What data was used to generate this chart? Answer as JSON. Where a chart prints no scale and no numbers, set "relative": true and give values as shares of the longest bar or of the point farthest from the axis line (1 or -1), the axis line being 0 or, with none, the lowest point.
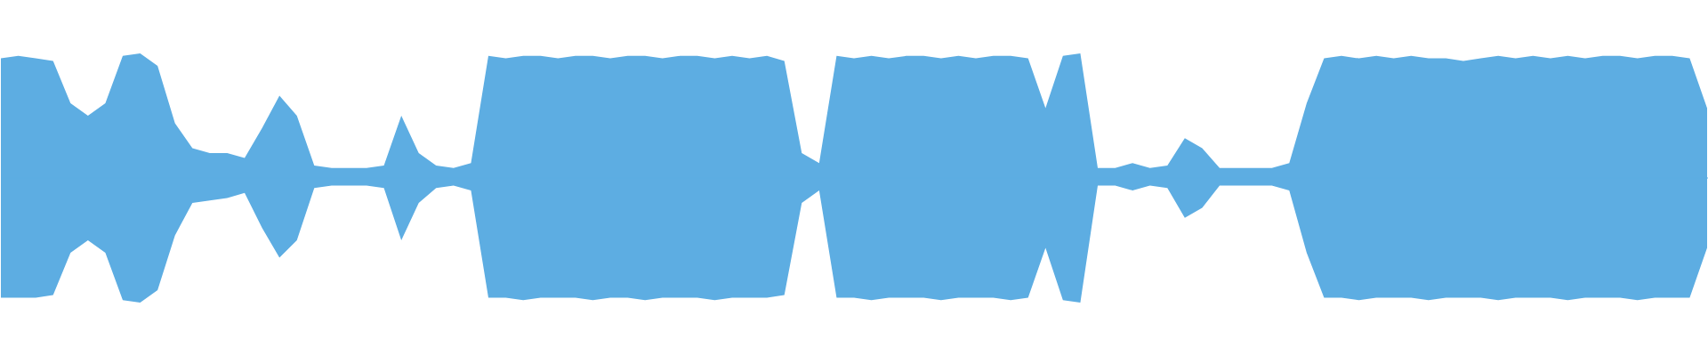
{
  "chart_data": {
    "type": "area",
    "relative": true,
    "categories": [
      null,
      null,
      null,
      null,
      null,
      null,
      null,
      null,
      null,
      null,
      null,
      null,
      null,
      null,
      null,
      null,
      null,
      null,
      null,
      null,
      null,
      null,
      null,
      null,
      null,
      null,
      null,
      null,
      null,
      null,
      null,
      null,
      null,
      null,
      null,
      null,
      null,
      null,
      null,
      null,
      null,
      null,
      null,
      null,
      null,
      null,
      null,
      null,
      null,
      null,
      null,
      null,
      null,
      null,
      null,
      null,
      null,
      null,
      null,
      null,
      null,
      null,
      null,
      null,
      null,
      null,
      null,
      null,
      null,
      null,
      null,
      null,
      null,
      null,
      null,
      null,
      null,
      null,
      null,
      null,
      null,
      null,
      null,
      null,
      null,
      null,
      null,
      null,
      null,
      null,
      null,
      null,
      null,
      null,
      null,
      null,
      null,
      null,
      null
    ],
    "series": [
      {
        "color": "#5dade2",
        "values": [
          0.96,
          0.98,
          0.96,
          0.94,
          0.6,
          0.5,
          0.6,
          0.98,
          1,
          0.9,
          0.44,
          0.24,
          0.2,
          0.2,
          0.16,
          0.4,
          0.66,
          0.5,
          0.1,
          0.08,
          0.08,
          0.08,
          0.1,
          0.5,
          0.2,
          0.1,
          0.08,
          0.12,
          0.98,
          0.96,
          0.98,
          0.98,
          0.96,
          0.98,
          0.98,
          0.96,
          0.98,
          0.98,
          0.96,
          0.98,
          0.98,
          0.96,
          0.98,
          0.96,
          0.98,
          0.94,
          0.2,
          0.12,
          0.98,
          0.96,
          0.98,
          0.96,
          0.98,
          0.98,
          0.96,
          0.98,
          0.96,
          0.98,
          0.98,
          0.96,
          0.56,
          0.98,
          1,
          0.08,
          0.08,
          0.12,
          0.08,
          0.1,
          0.32,
          0.24,
          0.08,
          0.08,
          0.08,
          0.08,
          0.12,
          0.6,
          0.96,
          0.98,
          0.96,
          0.98,
          0.96,
          0.98,
          0.96,
          0.96,
          0.94,
          0.96,
          0.98,
          0.96,
          0.98,
          0.96,
          0.98,
          0.96,
          0.98,
          0.98,
          0.96,
          0.98,
          0.98,
          0.96,
          0.56
        ]
      },
      {
        "color": "#5dade2",
        "values": [
          -0.96,
          -0.96,
          -0.96,
          -0.94,
          -0.6,
          -0.5,
          -0.6,
          -0.98,
          -1,
          -0.9,
          -0.46,
          -0.2,
          -0.18,
          -0.16,
          -0.12,
          -0.4,
          -0.64,
          -0.5,
          -0.08,
          -0.06,
          -0.06,
          -0.06,
          -0.08,
          -0.5,
          -0.2,
          -0.08,
          -0.06,
          -0.1,
          -0.96,
          -0.96,
          -0.98,
          -0.96,
          -0.96,
          -0.96,
          -0.98,
          -0.96,
          -0.96,
          -0.98,
          -0.96,
          -0.96,
          -0.96,
          -0.98,
          -0.96,
          -0.96,
          -0.96,
          -0.94,
          -0.2,
          -0.1,
          -0.96,
          -0.96,
          -0.98,
          -0.96,
          -0.96,
          -0.96,
          -0.98,
          -0.96,
          -0.96,
          -0.96,
          -0.98,
          -0.96,
          -0.56,
          -0.98,
          -1,
          -0.06,
          -0.06,
          -0.1,
          -0.06,
          -0.08,
          -0.32,
          -0.24,
          -0.06,
          -0.06,
          -0.06,
          -0.06,
          -0.1,
          -0.6,
          -0.96,
          -0.96,
          -0.98,
          -0.96,
          -0.96,
          -0.96,
          -0.98,
          -0.96,
          -0.96,
          -0.96,
          -0.98,
          -0.96,
          -0.96,
          -0.96,
          -0.98,
          -0.96,
          -0.96,
          -0.96,
          -0.98,
          -0.96,
          -0.96,
          -0.96,
          -0.56
        ]
      }
    ]
  }
}
